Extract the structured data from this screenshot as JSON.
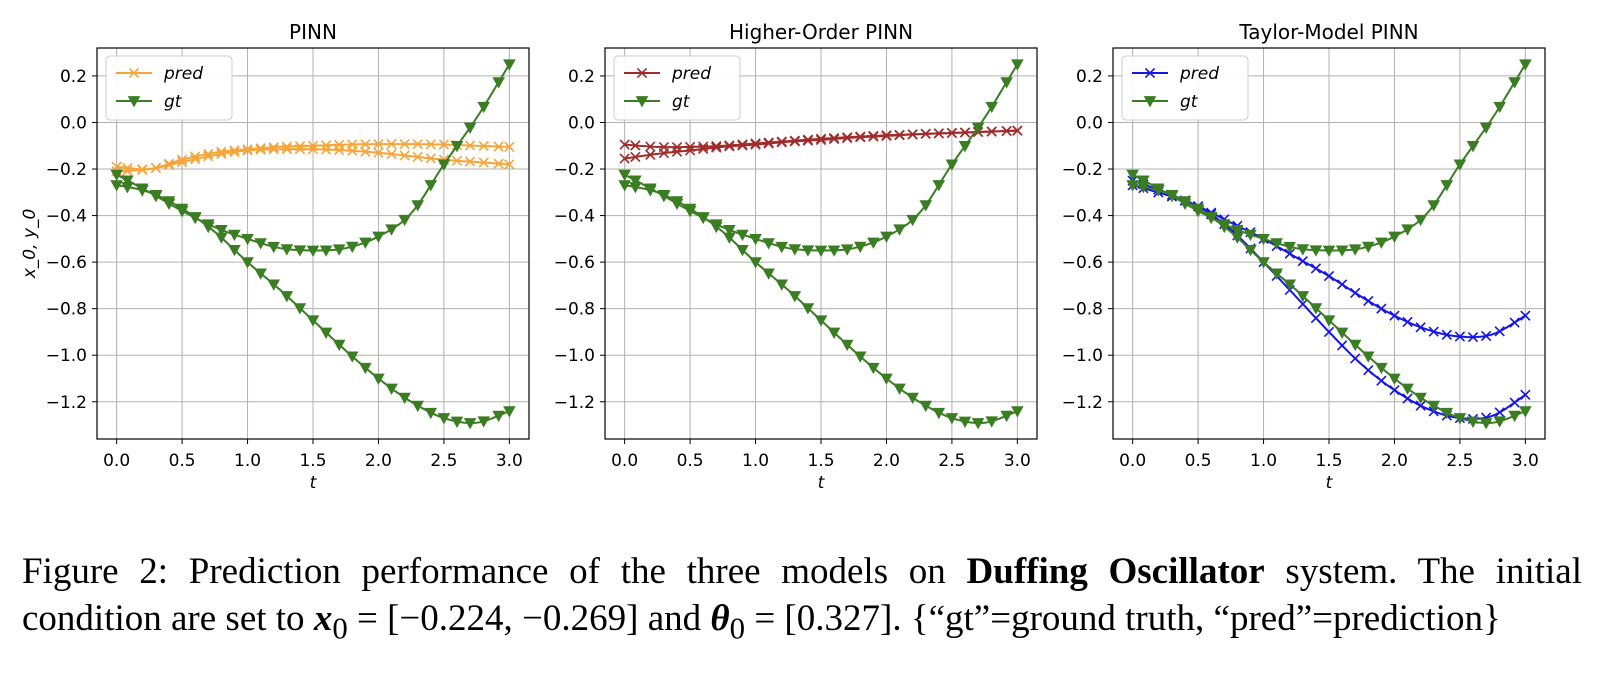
{
  "chart_data": [
    {
      "type": "line",
      "title": "PINN",
      "xlabel": "t",
      "ylabel": "x_0, y_0",
      "xlim": [
        -0.15,
        3.15
      ],
      "ylim": [
        -1.36,
        0.32
      ],
      "xticks": [
        0.0,
        0.5,
        1.0,
        1.5,
        2.0,
        2.5,
        3.0
      ],
      "xtick_labels": [
        "0.0",
        "0.5",
        "1.0",
        "1.5",
        "2.0",
        "2.5",
        "3.0"
      ],
      "yticks": [
        0.2,
        0.0,
        -0.2,
        -0.4,
        -0.6,
        -0.8,
        -1.0,
        -1.2
      ],
      "ytick_labels": [
        "0.2",
        "0.0",
        "−0.2",
        "−0.4",
        "−0.6",
        "−0.8",
        "−1.0",
        "−1.2"
      ],
      "grid": true,
      "legend": "top-left",
      "legend_entries": [
        {
          "label": "pred",
          "color": "#f5a53a",
          "marker": "x"
        },
        {
          "label": "gt",
          "color": "#3a7d22",
          "marker": "v"
        }
      ],
      "series": [
        {
          "name": "pred",
          "color": "#f5a53a",
          "marker": "x",
          "x": [
            0,
            0.25,
            0.5,
            0.75,
            1.0,
            1.25,
            1.5,
            1.75,
            2.0,
            2.25,
            2.5,
            2.75,
            3.0
          ],
          "y": [
            -0.19,
            -0.2,
            -0.16,
            -0.13,
            -0.115,
            -0.105,
            -0.1,
            -0.095,
            -0.093,
            -0.093,
            -0.095,
            -0.1,
            -0.105
          ]
        },
        {
          "name": "pred",
          "color": "#f5a53a",
          "marker": "x",
          "x": [
            0,
            0.25,
            0.5,
            0.75,
            1.0,
            1.25,
            1.5,
            1.75,
            2.0,
            2.25,
            2.5,
            2.75,
            3.0
          ],
          "y": [
            -0.21,
            -0.2,
            -0.17,
            -0.14,
            -0.12,
            -0.115,
            -0.115,
            -0.12,
            -0.13,
            -0.145,
            -0.16,
            -0.17,
            -0.18
          ]
        },
        {
          "name": "gt",
          "color": "#3a7d22",
          "marker": "v",
          "x": [
            0,
            0.25,
            0.5,
            0.75,
            1.0,
            1.25,
            1.5,
            1.75,
            2.0,
            2.25,
            2.5,
            2.75,
            3.0
          ],
          "y": [
            -0.224,
            -0.3,
            -0.38,
            -0.45,
            -0.5,
            -0.54,
            -0.55,
            -0.54,
            -0.49,
            -0.39,
            -0.18,
            0.02,
            0.25
          ]
        },
        {
          "name": "gt",
          "color": "#3a7d22",
          "marker": "v",
          "x": [
            0,
            0.25,
            0.5,
            0.75,
            1.0,
            1.25,
            1.5,
            1.75,
            2.0,
            2.25,
            2.5,
            2.75,
            3.0
          ],
          "y": [
            -0.269,
            -0.3,
            -0.37,
            -0.47,
            -0.6,
            -0.72,
            -0.85,
            -0.98,
            -1.1,
            -1.2,
            -1.27,
            -1.29,
            -1.24
          ]
        }
      ]
    },
    {
      "type": "line",
      "title": "Higher-Order PINN",
      "xlabel": "t",
      "ylabel": "",
      "xlim": [
        -0.15,
        3.15
      ],
      "ylim": [
        -1.36,
        0.32
      ],
      "xticks": [
        0.0,
        0.5,
        1.0,
        1.5,
        2.0,
        2.5,
        3.0
      ],
      "xtick_labels": [
        "0.0",
        "0.5",
        "1.0",
        "1.5",
        "2.0",
        "2.5",
        "3.0"
      ],
      "yticks": [
        0.2,
        0.0,
        -0.2,
        -0.4,
        -0.6,
        -0.8,
        -1.0,
        -1.2
      ],
      "ytick_labels": [
        "0.2",
        "0.0",
        "−0.2",
        "−0.4",
        "−0.6",
        "−0.8",
        "−1.0",
        "−1.2"
      ],
      "grid": true,
      "legend": "top-left",
      "legend_entries": [
        {
          "label": "pred",
          "color": "#a12b2b",
          "marker": "x"
        },
        {
          "label": "gt",
          "color": "#3a7d22",
          "marker": "v"
        }
      ],
      "series": [
        {
          "name": "pred",
          "color": "#a12b2b",
          "marker": "x",
          "x": [
            0,
            0.25,
            0.5,
            0.75,
            1.0,
            1.25,
            1.5,
            1.75,
            2.0,
            2.25,
            2.5,
            2.75,
            3.0
          ],
          "y": [
            -0.095,
            -0.105,
            -0.105,
            -0.1,
            -0.09,
            -0.08,
            -0.07,
            -0.062,
            -0.055,
            -0.05,
            -0.045,
            -0.04,
            -0.035
          ]
        },
        {
          "name": "pred",
          "color": "#a12b2b",
          "marker": "x",
          "x": [
            0,
            0.25,
            0.5,
            0.75,
            1.0,
            1.25,
            1.5,
            1.75,
            2.0,
            2.25,
            2.5,
            2.75,
            3.0
          ],
          "y": [
            -0.155,
            -0.135,
            -0.12,
            -0.105,
            -0.095,
            -0.083,
            -0.075,
            -0.065,
            -0.058,
            -0.05,
            -0.045,
            -0.04,
            -0.035
          ]
        },
        {
          "name": "gt",
          "color": "#3a7d22",
          "marker": "v",
          "x": [
            0,
            0.25,
            0.5,
            0.75,
            1.0,
            1.25,
            1.5,
            1.75,
            2.0,
            2.25,
            2.5,
            2.75,
            3.0
          ],
          "y": [
            -0.224,
            -0.3,
            -0.38,
            -0.45,
            -0.5,
            -0.54,
            -0.55,
            -0.54,
            -0.49,
            -0.39,
            -0.18,
            0.02,
            0.25
          ]
        },
        {
          "name": "gt",
          "color": "#3a7d22",
          "marker": "v",
          "x": [
            0,
            0.25,
            0.5,
            0.75,
            1.0,
            1.25,
            1.5,
            1.75,
            2.0,
            2.25,
            2.5,
            2.75,
            3.0
          ],
          "y": [
            -0.269,
            -0.3,
            -0.37,
            -0.47,
            -0.6,
            -0.72,
            -0.85,
            -0.98,
            -1.1,
            -1.2,
            -1.27,
            -1.29,
            -1.24
          ]
        }
      ]
    },
    {
      "type": "line",
      "title": "Taylor-Model PINN",
      "xlabel": "t",
      "ylabel": "",
      "xlim": [
        -0.15,
        3.15
      ],
      "ylim": [
        -1.36,
        0.32
      ],
      "xticks": [
        0.0,
        0.5,
        1.0,
        1.5,
        2.0,
        2.5,
        3.0
      ],
      "xtick_labels": [
        "0.0",
        "0.5",
        "1.0",
        "1.5",
        "2.0",
        "2.5",
        "3.0"
      ],
      "yticks": [
        0.2,
        0.0,
        -0.2,
        -0.4,
        -0.6,
        -0.8,
        -1.0,
        -1.2
      ],
      "ytick_labels": [
        "0.2",
        "0.0",
        "−0.2",
        "−0.4",
        "−0.6",
        "−0.8",
        "−1.0",
        "−1.2"
      ],
      "grid": true,
      "legend": "top-left",
      "legend_entries": [
        {
          "label": "pred",
          "color": "#1515e6",
          "marker": "x"
        },
        {
          "label": "gt",
          "color": "#3a7d22",
          "marker": "v"
        }
      ],
      "series": [
        {
          "name": "pred",
          "color": "#1515e6",
          "marker": "x",
          "x": [
            0,
            0.25,
            0.5,
            0.75,
            1.0,
            1.25,
            1.5,
            1.75,
            2.0,
            2.25,
            2.5,
            2.75,
            3.0
          ],
          "y": [
            -0.25,
            -0.3,
            -0.36,
            -0.43,
            -0.5,
            -0.58,
            -0.66,
            -0.75,
            -0.83,
            -0.89,
            -0.92,
            -0.91,
            -0.83
          ]
        },
        {
          "name": "pred",
          "color": "#1515e6",
          "marker": "x",
          "x": [
            0,
            0.25,
            0.5,
            0.75,
            1.0,
            1.25,
            1.5,
            1.75,
            2.0,
            2.25,
            2.5,
            2.75,
            3.0
          ],
          "y": [
            -0.27,
            -0.31,
            -0.36,
            -0.46,
            -0.6,
            -0.75,
            -0.9,
            -1.04,
            -1.15,
            -1.23,
            -1.27,
            -1.26,
            -1.17
          ]
        },
        {
          "name": "gt",
          "color": "#3a7d22",
          "marker": "v",
          "x": [
            0,
            0.25,
            0.5,
            0.75,
            1.0,
            1.25,
            1.5,
            1.75,
            2.0,
            2.25,
            2.5,
            2.75,
            3.0
          ],
          "y": [
            -0.224,
            -0.3,
            -0.38,
            -0.45,
            -0.5,
            -0.54,
            -0.55,
            -0.54,
            -0.49,
            -0.39,
            -0.18,
            0.02,
            0.25
          ]
        },
        {
          "name": "gt",
          "color": "#3a7d22",
          "marker": "v",
          "x": [
            0,
            0.25,
            0.5,
            0.75,
            1.0,
            1.25,
            1.5,
            1.75,
            2.0,
            2.25,
            2.5,
            2.75,
            3.0
          ],
          "y": [
            -0.269,
            -0.3,
            -0.37,
            -0.47,
            -0.6,
            -0.72,
            -0.85,
            -0.98,
            -1.1,
            -1.2,
            -1.27,
            -1.29,
            -1.24
          ]
        }
      ]
    }
  ],
  "caption": {
    "label": "Figure 2:",
    "text_a": " Prediction performance of the three models on ",
    "system": "Duffing Oscillator",
    "text_b": " system. The initial condition are set to ",
    "x0_sym": "x",
    "x0_sub": "0",
    "x0_val": " = [−0.224, −0.269]",
    "text_c": " and ",
    "theta_sym": "θ",
    "theta_sub": "0",
    "theta_val": " = [0.327]",
    "text_d": ". {“gt”=ground truth, “pred”=prediction}"
  }
}
